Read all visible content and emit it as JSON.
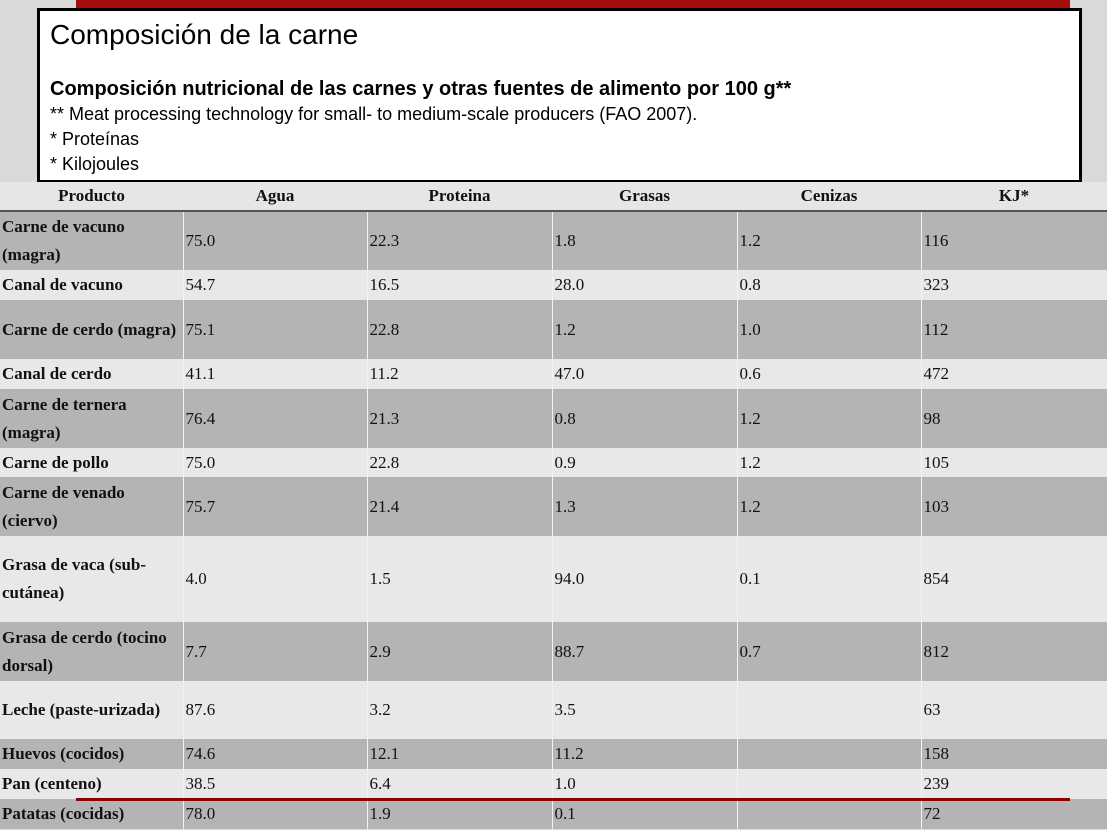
{
  "header": {
    "title": "Composición de la carne",
    "subtitle": "Composición nutricional de las carnes y otras fuentes de alimento por 100 g**",
    "notes": [
      "** Meat processing technology for small- to medium-scale producers (FAO 2007).",
      "* Proteínas",
      "* Kilojoules"
    ]
  },
  "colors": {
    "accent_bar": "#a50c0c",
    "dark_row": "#b4b4b4",
    "light_row": "#e8e8e8"
  },
  "table": {
    "columns": [
      "Producto",
      "Agua",
      "Proteina",
      "Grasas",
      "Cenizas",
      "KJ*"
    ],
    "rows": [
      [
        "Carne de vacuno (magra)",
        "75.0",
        "22.3",
        "1.8",
        "1.2",
        "116"
      ],
      [
        "Canal de vacuno",
        "54.7",
        "16.5",
        "28.0",
        "0.8",
        "323"
      ],
      [
        "Carne de cerdo (magra)",
        "75.1",
        "22.8",
        "1.2",
        "1.0",
        "112"
      ],
      [
        "Canal de cerdo",
        "41.1",
        "11.2",
        "47.0",
        "0.6",
        "472"
      ],
      [
        "Carne de ternera (magra)",
        "76.4",
        "21.3",
        "0.8",
        "1.2",
        "98"
      ],
      [
        "Carne de pollo",
        "75.0",
        "22.8",
        "0.9",
        "1.2",
        "105"
      ],
      [
        "Carne de venado (ciervo)",
        "75.7",
        "21.4",
        "1.3",
        "1.2",
        "103"
      ],
      [
        "Grasa de vaca (sub-cutánea)",
        "4.0",
        "1.5",
        "94.0",
        "0.1",
        "854"
      ],
      [
        "Grasa de cerdo (tocino dorsal)",
        "7.7",
        "2.9",
        "88.7",
        "0.7",
        "812"
      ],
      [
        "Leche (paste-urizada)",
        "87.6",
        "3.2",
        "3.5",
        "",
        "63"
      ],
      [
        "Huevos (cocidos)",
        "74.6",
        "12.1",
        "11.2",
        "",
        "158"
      ],
      [
        "Pan (centeno)",
        "38.5",
        "6.4",
        "1.0",
        "",
        "239"
      ],
      [
        "Patatas (cocidas)",
        "78.0",
        "1.9",
        "0.1",
        "",
        "72"
      ]
    ]
  }
}
